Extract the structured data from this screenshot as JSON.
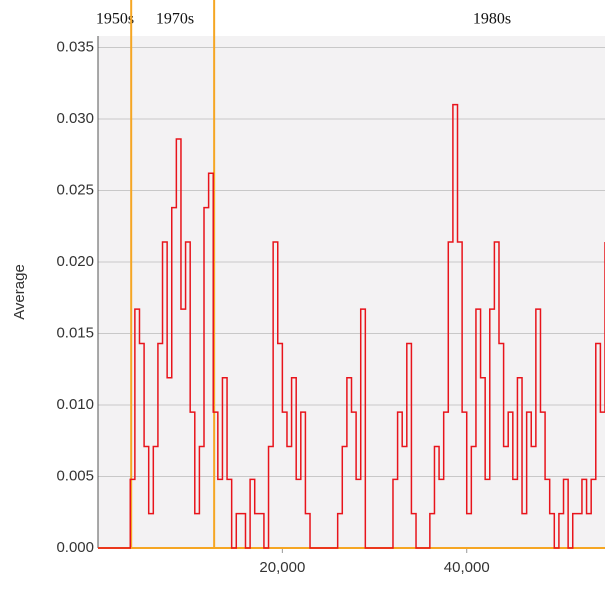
{
  "chart_data": {
    "type": "step",
    "y_label": "Average",
    "annotations": [
      "1950s",
      "1970s",
      "1980s"
    ],
    "markers": {
      "color": "#f5a623",
      "x": [
        3600,
        12600
      ]
    },
    "xlim": [
      0,
      55000
    ],
    "xticks": [
      {
        "value": 20000,
        "label": "20,000"
      },
      {
        "value": 40000,
        "label": "40,000"
      }
    ],
    "ylim": [
      0,
      0.0358
    ],
    "yticks": [
      {
        "value": 0,
        "label": "0.000"
      },
      {
        "value": 0.005,
        "label": "0.005"
      },
      {
        "value": 0.01,
        "label": "0.010"
      },
      {
        "value": 0.015,
        "label": "0.015"
      },
      {
        "value": 0.02,
        "label": "0.020"
      },
      {
        "value": 0.025,
        "label": "0.025"
      },
      {
        "value": 0.03,
        "label": "0.030"
      },
      {
        "value": 0.035,
        "label": "0.035"
      }
    ],
    "grid": true,
    "x": [
      0,
      500,
      1000,
      1500,
      2000,
      2500,
      3000,
      3500,
      4000,
      4500,
      5000,
      5500,
      6000,
      6500,
      7000,
      7500,
      8000,
      8500,
      9000,
      9500,
      10000,
      10500,
      11000,
      11500,
      12000,
      12500,
      13000,
      13500,
      14000,
      14500,
      15000,
      15500,
      16000,
      16500,
      17000,
      17500,
      18000,
      18500,
      19000,
      19500,
      20000,
      20500,
      21000,
      21500,
      22000,
      22500,
      23000,
      23500,
      24000,
      24500,
      25000,
      25500,
      26000,
      26500,
      27000,
      27500,
      28000,
      28500,
      29000,
      29500,
      30000,
      30500,
      31000,
      31500,
      32000,
      32500,
      33000,
      33500,
      34000,
      34500,
      35000,
      35500,
      36000,
      36500,
      37000,
      37500,
      38000,
      38500,
      39000,
      39500,
      40000,
      40500,
      41000,
      41500,
      42000,
      42500,
      43000,
      43500,
      44000,
      44500,
      45000,
      45500,
      46000,
      46500,
      47000,
      47500,
      48000,
      48500,
      49000,
      49500,
      50000,
      50500,
      51000,
      51500,
      52000,
      52500,
      53000,
      53500,
      54000,
      54500,
      55000
    ],
    "series": [
      {
        "color": "#e8141b",
        "values": [
          0,
          0,
          0,
          0,
          0,
          0,
          0,
          0.0048,
          0.0167,
          0.0143,
          0.0071,
          0.0024,
          0.0071,
          0.0143,
          0.0214,
          0.0119,
          0.0238,
          0.0286,
          0.0167,
          0.0214,
          0.0095,
          0.0024,
          0.0071,
          0.0238,
          0.0262,
          0.0095,
          0.0048,
          0.0119,
          0.0048,
          0,
          0.0024,
          0.0024,
          0,
          0.0048,
          0.0024,
          0.0024,
          0,
          0.0071,
          0.0214,
          0.0143,
          0.0095,
          0.0071,
          0.0119,
          0.0048,
          0.0095,
          0.0024,
          0,
          0,
          0,
          0,
          0,
          0,
          0.0024,
          0.0071,
          0.0119,
          0.0095,
          0.0048,
          0.0167,
          0,
          0,
          0,
          0,
          0,
          0,
          0.0048,
          0.0095,
          0.0071,
          0.0143,
          0.0024,
          0,
          0,
          0,
          0.0024,
          0.0071,
          0.0048,
          0.0095,
          0.0214,
          0.031,
          0.0214,
          0.0095,
          0.0024,
          0.0071,
          0.0167,
          0.0119,
          0.0048,
          0.0167,
          0.0214,
          0.0143,
          0.0071,
          0.0095,
          0.0048,
          0.0119,
          0.0024,
          0.0095,
          0.0071,
          0.0167,
          0.0095,
          0.0048,
          0.0024,
          0,
          0.0024,
          0.0048,
          0,
          0.0024,
          0.0024,
          0.0048,
          0.0024,
          0.0048,
          0.0143,
          0.0095,
          0.0214
        ]
      }
    ]
  }
}
